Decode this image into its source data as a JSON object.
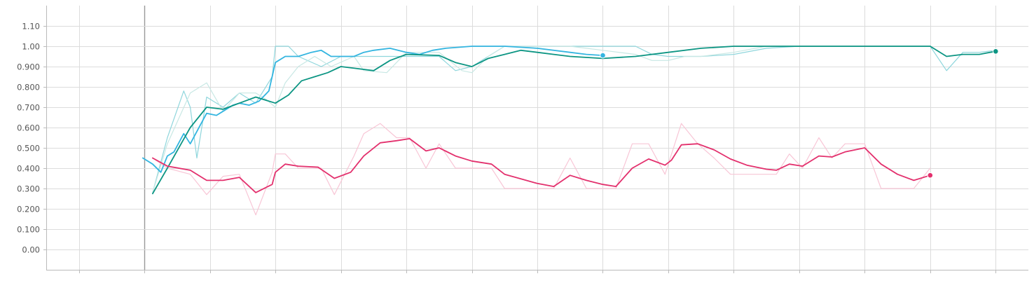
{
  "chart_data": {
    "type": "line",
    "title": "",
    "xlabel": "",
    "ylabel": "",
    "ylim": [
      -0.1,
      1.2
    ],
    "y_ticks": [
      "0.00",
      "0.100",
      "0.200",
      "0.300",
      "0.400",
      "0.500",
      "0.600",
      "0.700",
      "0.800",
      "0.900",
      "1.00",
      "1.10"
    ],
    "y_tick_values": [
      0,
      0.1,
      0.2,
      0.3,
      0.4,
      0.5,
      0.6,
      0.7,
      0.8,
      0.9,
      1.0,
      1.1
    ],
    "xlim": [
      -3,
      27
    ],
    "x_grid": [
      -2,
      0,
      2,
      4,
      6,
      8,
      10,
      12,
      14,
      16,
      18,
      20,
      22,
      24,
      26
    ],
    "grid": true,
    "legend": "none",
    "series": [
      {
        "color": "#8fd6dc",
        "width": 1.2,
        "smoothed": false,
        "values": [
          [
            0.25,
            0.28
          ],
          [
            0.7,
            0.55
          ],
          [
            1.2,
            0.78
          ],
          [
            1.4,
            0.7
          ],
          [
            1.6,
            0.45
          ],
          [
            1.9,
            0.75
          ],
          [
            2.4,
            0.7
          ],
          [
            2.9,
            0.77
          ],
          [
            3.4,
            0.72
          ],
          [
            3.9,
            0.85
          ],
          [
            4.0,
            1.0
          ],
          [
            4.4,
            1.0
          ],
          [
            4.7,
            0.95
          ],
          [
            5.4,
            0.9
          ],
          [
            6.0,
            0.95
          ],
          [
            6.4,
            0.95
          ],
          [
            7.0,
            0.95
          ],
          [
            8.0,
            0.95
          ],
          [
            9.0,
            0.95
          ],
          [
            9.5,
            0.88
          ],
          [
            10.0,
            0.9
          ],
          [
            11.0,
            1.0
          ],
          [
            12.0,
            1.0
          ],
          [
            13.0,
            1.0
          ],
          [
            14.0,
            1.0
          ],
          [
            15.0,
            1.0
          ],
          [
            15.5,
            0.96
          ],
          [
            16.0,
            0.95
          ],
          [
            16.5,
            0.95
          ],
          [
            17.0,
            0.95
          ],
          [
            18.0,
            0.96
          ],
          [
            19.0,
            0.99
          ],
          [
            20.0,
            1.0
          ],
          [
            21.0,
            1.0
          ],
          [
            22.0,
            1.0
          ],
          [
            23.0,
            1.0
          ],
          [
            24.0,
            1.0
          ],
          [
            24.5,
            0.88
          ],
          [
            25.0,
            0.97
          ],
          [
            25.5,
            0.97
          ],
          [
            26.0,
            0.98
          ]
        ]
      },
      {
        "color": "#c8e8e4",
        "width": 1.2,
        "smoothed": false,
        "values": [
          [
            0.25,
            0.28
          ],
          [
            0.7,
            0.52
          ],
          [
            1.4,
            0.77
          ],
          [
            1.9,
            0.82
          ],
          [
            2.4,
            0.68
          ],
          [
            2.9,
            0.77
          ],
          [
            3.4,
            0.77
          ],
          [
            3.7,
            0.74
          ],
          [
            4.0,
            0.7
          ],
          [
            4.3,
            0.82
          ],
          [
            4.7,
            0.9
          ],
          [
            5.2,
            0.95
          ],
          [
            5.7,
            0.9
          ],
          [
            6.4,
            0.95
          ],
          [
            6.7,
            0.88
          ],
          [
            7.4,
            0.87
          ],
          [
            8.0,
            0.97
          ],
          [
            9.0,
            0.97
          ],
          [
            9.7,
            0.88
          ],
          [
            10.0,
            0.87
          ],
          [
            10.5,
            0.95
          ],
          [
            11.0,
            1.0
          ],
          [
            12.0,
            1.0
          ],
          [
            13.0,
            1.0
          ],
          [
            14.0,
            0.98
          ],
          [
            15.0,
            0.96
          ],
          [
            15.5,
            0.93
          ],
          [
            16.0,
            0.93
          ],
          [
            16.5,
            0.95
          ],
          [
            17.0,
            0.95
          ],
          [
            18.0,
            0.97
          ],
          [
            19.0,
            1.0
          ],
          [
            20.0,
            1.0
          ],
          [
            21.0,
            1.0
          ],
          [
            22.0,
            1.0
          ],
          [
            23.0,
            1.0
          ],
          [
            24.0,
            1.0
          ],
          [
            24.5,
            0.95
          ],
          [
            25.0,
            0.96
          ],
          [
            25.5,
            0.96
          ],
          [
            26.0,
            0.98
          ]
        ]
      },
      {
        "color": "#f8c6d6",
        "width": 1.2,
        "smoothed": false,
        "values": [
          [
            0.25,
            0.45
          ],
          [
            0.7,
            0.4
          ],
          [
            1.4,
            0.37
          ],
          [
            1.9,
            0.27
          ],
          [
            2.4,
            0.36
          ],
          [
            2.9,
            0.37
          ],
          [
            3.4,
            0.17
          ],
          [
            3.9,
            0.38
          ],
          [
            4.0,
            0.47
          ],
          [
            4.3,
            0.47
          ],
          [
            4.7,
            0.4
          ],
          [
            5.4,
            0.4
          ],
          [
            5.8,
            0.27
          ],
          [
            6.4,
            0.46
          ],
          [
            6.7,
            0.57
          ],
          [
            7.2,
            0.62
          ],
          [
            7.7,
            0.55
          ],
          [
            8.1,
            0.55
          ],
          [
            8.6,
            0.4
          ],
          [
            9.0,
            0.52
          ],
          [
            9.5,
            0.4
          ],
          [
            10.0,
            0.4
          ],
          [
            10.6,
            0.4
          ],
          [
            11.0,
            0.3
          ],
          [
            12.0,
            0.3
          ],
          [
            12.5,
            0.3
          ],
          [
            13.0,
            0.45
          ],
          [
            13.5,
            0.3
          ],
          [
            14.0,
            0.3
          ],
          [
            14.4,
            0.3
          ],
          [
            14.9,
            0.52
          ],
          [
            15.4,
            0.52
          ],
          [
            15.9,
            0.37
          ],
          [
            16.4,
            0.62
          ],
          [
            16.9,
            0.52
          ],
          [
            17.4,
            0.45
          ],
          [
            17.9,
            0.37
          ],
          [
            18.5,
            0.37
          ],
          [
            19.0,
            0.37
          ],
          [
            19.3,
            0.37
          ],
          [
            19.7,
            0.47
          ],
          [
            20.1,
            0.4
          ],
          [
            20.6,
            0.55
          ],
          [
            21.0,
            0.45
          ],
          [
            21.4,
            0.52
          ],
          [
            22.0,
            0.52
          ],
          [
            22.5,
            0.3
          ],
          [
            23.0,
            0.3
          ],
          [
            23.5,
            0.3
          ],
          [
            24.0,
            0.4
          ]
        ]
      },
      {
        "color": "#33b5e0",
        "width": 1.8,
        "smoothed": true,
        "values": [
          [
            -0.05,
            0.45
          ],
          [
            0.25,
            0.42
          ],
          [
            0.5,
            0.38
          ],
          [
            0.7,
            0.46
          ],
          [
            0.9,
            0.48
          ],
          [
            1.2,
            0.57
          ],
          [
            1.4,
            0.52
          ],
          [
            1.7,
            0.61
          ],
          [
            1.9,
            0.67
          ],
          [
            2.2,
            0.66
          ],
          [
            2.4,
            0.68
          ],
          [
            2.7,
            0.71
          ],
          [
            2.9,
            0.72
          ],
          [
            3.2,
            0.71
          ],
          [
            3.5,
            0.73
          ],
          [
            3.8,
            0.78
          ],
          [
            4.0,
            0.92
          ],
          [
            4.3,
            0.95
          ],
          [
            4.7,
            0.95
          ],
          [
            5.1,
            0.97
          ],
          [
            5.4,
            0.98
          ],
          [
            5.7,
            0.95
          ],
          [
            6.1,
            0.95
          ],
          [
            6.4,
            0.95
          ],
          [
            6.7,
            0.97
          ],
          [
            7.0,
            0.98
          ],
          [
            7.5,
            0.99
          ],
          [
            8.0,
            0.97
          ],
          [
            8.4,
            0.96
          ],
          [
            8.8,
            0.98
          ],
          [
            9.2,
            0.99
          ],
          [
            10.0,
            1.0
          ],
          [
            11.0,
            1.0
          ],
          [
            12.0,
            0.99
          ],
          [
            13.0,
            0.97
          ],
          [
            13.5,
            0.96
          ],
          [
            14.0,
            0.955
          ]
        ]
      },
      {
        "color": "#0c9583",
        "width": 1.8,
        "smoothed": true,
        "values": [
          [
            0.25,
            0.275
          ],
          [
            0.7,
            0.4
          ],
          [
            1.4,
            0.6
          ],
          [
            1.9,
            0.7
          ],
          [
            2.4,
            0.69
          ],
          [
            2.9,
            0.72
          ],
          [
            3.4,
            0.75
          ],
          [
            4.0,
            0.72
          ],
          [
            4.4,
            0.76
          ],
          [
            4.8,
            0.83
          ],
          [
            5.2,
            0.85
          ],
          [
            5.6,
            0.87
          ],
          [
            6.0,
            0.9
          ],
          [
            6.5,
            0.89
          ],
          [
            7.0,
            0.88
          ],
          [
            7.5,
            0.93
          ],
          [
            8.0,
            0.96
          ],
          [
            9.0,
            0.955
          ],
          [
            9.5,
            0.92
          ],
          [
            10.0,
            0.9
          ],
          [
            10.5,
            0.94
          ],
          [
            11.0,
            0.96
          ],
          [
            11.5,
            0.98
          ],
          [
            12.0,
            0.97
          ],
          [
            12.5,
            0.96
          ],
          [
            13.0,
            0.95
          ],
          [
            14.0,
            0.94
          ],
          [
            15.0,
            0.95
          ],
          [
            16.0,
            0.97
          ],
          [
            17.0,
            0.99
          ],
          [
            18.0,
            1.0
          ],
          [
            19.0,
            1.0
          ],
          [
            20.0,
            1.0
          ],
          [
            21.0,
            1.0
          ],
          [
            22.0,
            1.0
          ],
          [
            23.0,
            1.0
          ],
          [
            24.0,
            1.0
          ],
          [
            24.5,
            0.95
          ],
          [
            25.0,
            0.96
          ],
          [
            25.5,
            0.96
          ],
          [
            26.0,
            0.975
          ]
        ]
      },
      {
        "color": "#e3306d",
        "width": 1.8,
        "smoothed": true,
        "values": [
          [
            0.25,
            0.45
          ],
          [
            0.7,
            0.41
          ],
          [
            1.4,
            0.39
          ],
          [
            1.9,
            0.34
          ],
          [
            2.4,
            0.34
          ],
          [
            2.9,
            0.355
          ],
          [
            3.4,
            0.28
          ],
          [
            3.9,
            0.32
          ],
          [
            4.0,
            0.38
          ],
          [
            4.3,
            0.42
          ],
          [
            4.7,
            0.41
          ],
          [
            5.3,
            0.405
          ],
          [
            5.8,
            0.35
          ],
          [
            6.3,
            0.38
          ],
          [
            6.7,
            0.46
          ],
          [
            7.2,
            0.525
          ],
          [
            7.7,
            0.535
          ],
          [
            8.1,
            0.545
          ],
          [
            8.6,
            0.485
          ],
          [
            9.0,
            0.5
          ],
          [
            9.5,
            0.46
          ],
          [
            10.0,
            0.435
          ],
          [
            10.6,
            0.42
          ],
          [
            11.0,
            0.37
          ],
          [
            12.0,
            0.325
          ],
          [
            12.5,
            0.31
          ],
          [
            13.0,
            0.365
          ],
          [
            13.5,
            0.34
          ],
          [
            14.0,
            0.32
          ],
          [
            14.4,
            0.31
          ],
          [
            14.9,
            0.4
          ],
          [
            15.4,
            0.445
          ],
          [
            15.9,
            0.415
          ],
          [
            16.1,
            0.44
          ],
          [
            16.4,
            0.515
          ],
          [
            16.9,
            0.52
          ],
          [
            17.4,
            0.49
          ],
          [
            17.9,
            0.445
          ],
          [
            18.4,
            0.415
          ],
          [
            19.0,
            0.395
          ],
          [
            19.3,
            0.39
          ],
          [
            19.7,
            0.42
          ],
          [
            20.1,
            0.41
          ],
          [
            20.6,
            0.46
          ],
          [
            21.0,
            0.455
          ],
          [
            21.4,
            0.48
          ],
          [
            22.0,
            0.5
          ],
          [
            22.5,
            0.42
          ],
          [
            23.0,
            0.37
          ],
          [
            23.5,
            0.34
          ],
          [
            24.0,
            0.365
          ]
        ]
      }
    ],
    "markers": [
      {
        "x": 14.0,
        "y": 0.955,
        "color": "#33b5e0"
      },
      {
        "x": 26.0,
        "y": 0.975,
        "color": "#0c9583"
      },
      {
        "x": 24.0,
        "y": 0.365,
        "color": "#e3306d"
      }
    ]
  }
}
